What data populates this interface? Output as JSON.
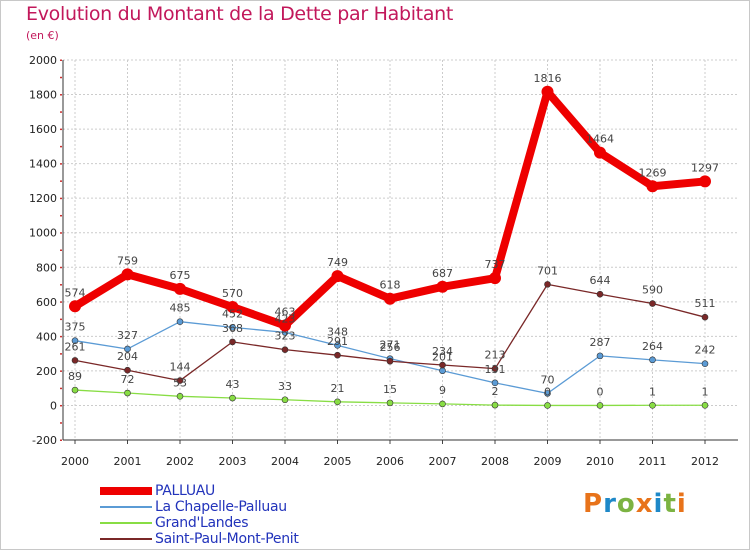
{
  "header": {
    "title": "Evolution du Montant de la Dette par Habitant",
    "subtitle": "(en €)"
  },
  "chart_data": {
    "type": "line",
    "title": "Evolution du Montant de la Dette par Habitant",
    "subtitle": "(en €)",
    "xlabel": "",
    "ylabel": "",
    "categories": [
      "2000",
      "2001",
      "2002",
      "2003",
      "2004",
      "2005",
      "2006",
      "2007",
      "2008",
      "2009",
      "2010",
      "2011",
      "2012"
    ],
    "ylim": [
      -200,
      2000
    ],
    "yticks": [
      -200,
      0,
      200,
      400,
      600,
      800,
      1000,
      1200,
      1400,
      1600,
      1800,
      2000
    ],
    "grid": true,
    "legend_position": "bottom-left",
    "series": [
      {
        "name": "PALLUAU",
        "color": "#ee0000",
        "values": [
          574,
          759,
          675,
          570,
          463,
          749,
          618,
          687,
          737,
          1816,
          1464,
          1269,
          1297
        ]
      },
      {
        "name": "La Chapelle-Palluau",
        "color": "#5b9bd5",
        "values": [
          375,
          327,
          485,
          452,
          423,
          348,
          271,
          201,
          131,
          70,
          287,
          264,
          242
        ]
      },
      {
        "name": "Grand'Landes",
        "color": "#88dd44",
        "values": [
          89,
          72,
          53,
          43,
          33,
          21,
          15,
          9,
          2,
          0,
          0,
          1,
          1
        ]
      },
      {
        "name": "Saint-Paul-Mont-Penit",
        "color": "#7a2828",
        "values": [
          261,
          204,
          144,
          368,
          323,
          291,
          256,
          234,
          213,
          701,
          644,
          590,
          511
        ]
      }
    ]
  },
  "logo": {
    "letters": [
      "P",
      "r",
      "o",
      "x",
      "i",
      "t",
      "i"
    ],
    "colors": [
      "#e8731a",
      "#1e88c8",
      "#7cb342",
      "#e8731a",
      "#1e88c8",
      "#7cb342",
      "#e8731a"
    ]
  }
}
